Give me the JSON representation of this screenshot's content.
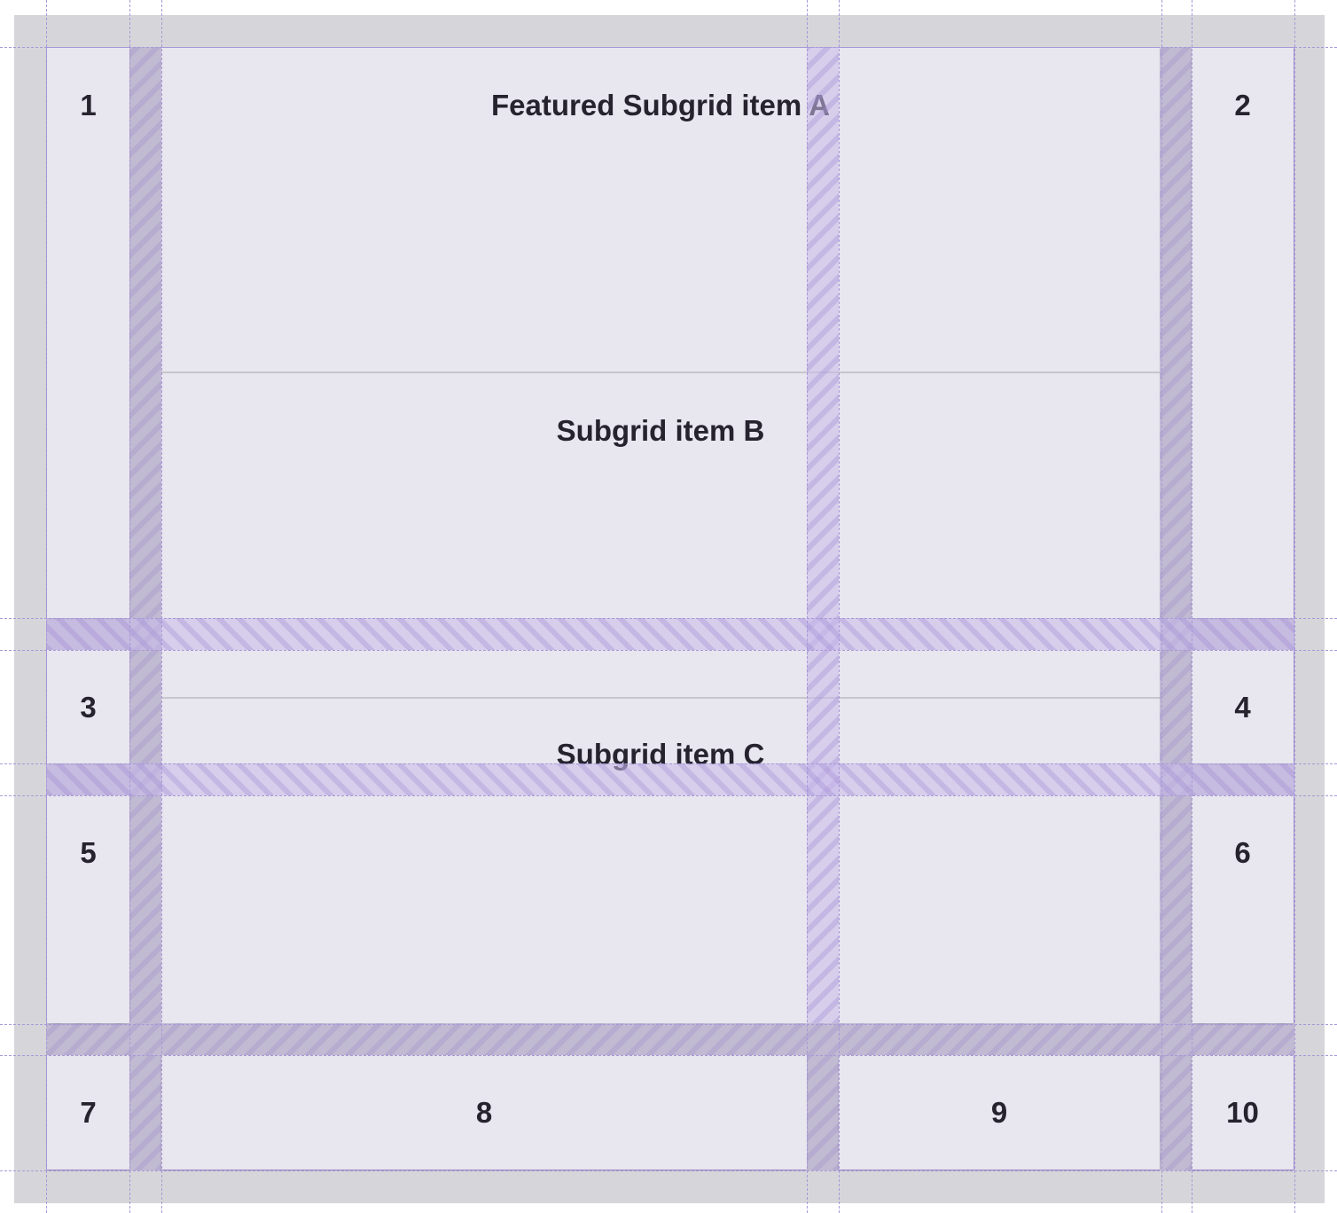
{
  "grid_items": [
    "1",
    "2",
    "3",
    "4",
    "5",
    "6",
    "7",
    "8",
    "9",
    "10"
  ],
  "subgrid_items": [
    "Featured Subgrid item A",
    "Subgrid item B",
    "Subgrid item C"
  ],
  "colors": {
    "cell": "#e8e6ee",
    "grid_line": "#a898d8",
    "container": "#d6d6da"
  }
}
